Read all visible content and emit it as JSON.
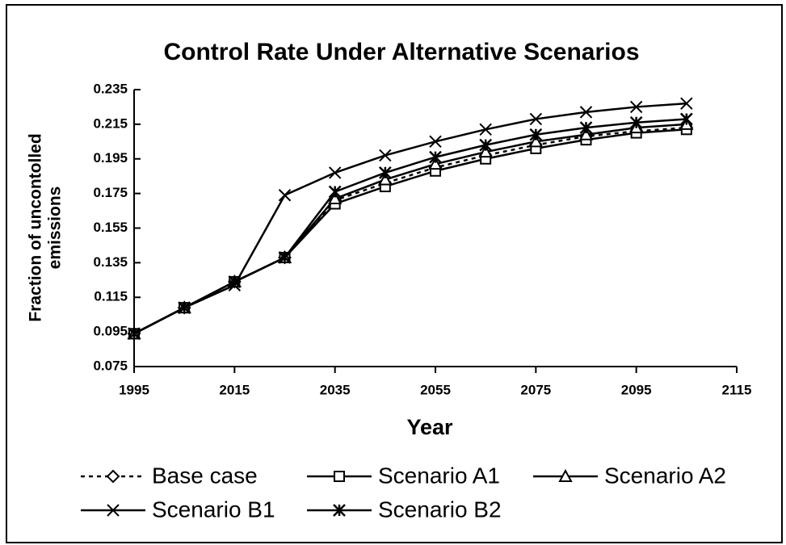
{
  "chart_data": {
    "type": "line",
    "title": "Control Rate Under Alternative Scenarios",
    "xlabel": "Year",
    "ylabel": [
      "Fraction of uncontolled",
      "emissions"
    ],
    "x": [
      1995,
      2005,
      2015,
      2025,
      2035,
      2045,
      2055,
      2065,
      2075,
      2085,
      2095,
      2105
    ],
    "series": [
      {
        "name": "Base case",
        "color": "#000000",
        "marker": "diamond",
        "dashed": true,
        "values": [
          0.094,
          0.109,
          0.124,
          0.138,
          0.171,
          0.181,
          0.19,
          0.197,
          0.203,
          0.208,
          0.211,
          0.213
        ]
      },
      {
        "name": "Scenario A1",
        "color": "#000000",
        "marker": "square",
        "dashed": false,
        "values": [
          0.094,
          0.109,
          0.124,
          0.138,
          0.169,
          0.179,
          0.188,
          0.195,
          0.201,
          0.206,
          0.21,
          0.212
        ]
      },
      {
        "name": "Scenario A2",
        "color": "#000000",
        "marker": "triangle",
        "dashed": false,
        "values": [
          0.094,
          0.109,
          0.124,
          0.138,
          0.172,
          0.183,
          0.192,
          0.199,
          0.205,
          0.209,
          0.213,
          0.215
        ]
      },
      {
        "name": "Scenario B1",
        "color": "#000000",
        "marker": "x",
        "dashed": false,
        "values": [
          0.094,
          0.109,
          0.122,
          0.174,
          0.187,
          0.197,
          0.205,
          0.212,
          0.218,
          0.222,
          0.225,
          0.227
        ]
      },
      {
        "name": "Scenario B2",
        "color": "#000000",
        "marker": "star",
        "dashed": false,
        "values": [
          0.094,
          0.109,
          0.124,
          0.138,
          0.176,
          0.187,
          0.196,
          0.203,
          0.209,
          0.213,
          0.216,
          0.218
        ]
      }
    ],
    "xlim": [
      1995,
      2115
    ],
    "xticks": [
      1995,
      2015,
      2035,
      2055,
      2075,
      2095,
      2115
    ],
    "ylim": [
      0.075,
      0.235
    ],
    "yticks": [
      0.075,
      0.095,
      0.115,
      0.135,
      0.155,
      0.175,
      0.195,
      0.215,
      0.235
    ],
    "grid": false
  }
}
